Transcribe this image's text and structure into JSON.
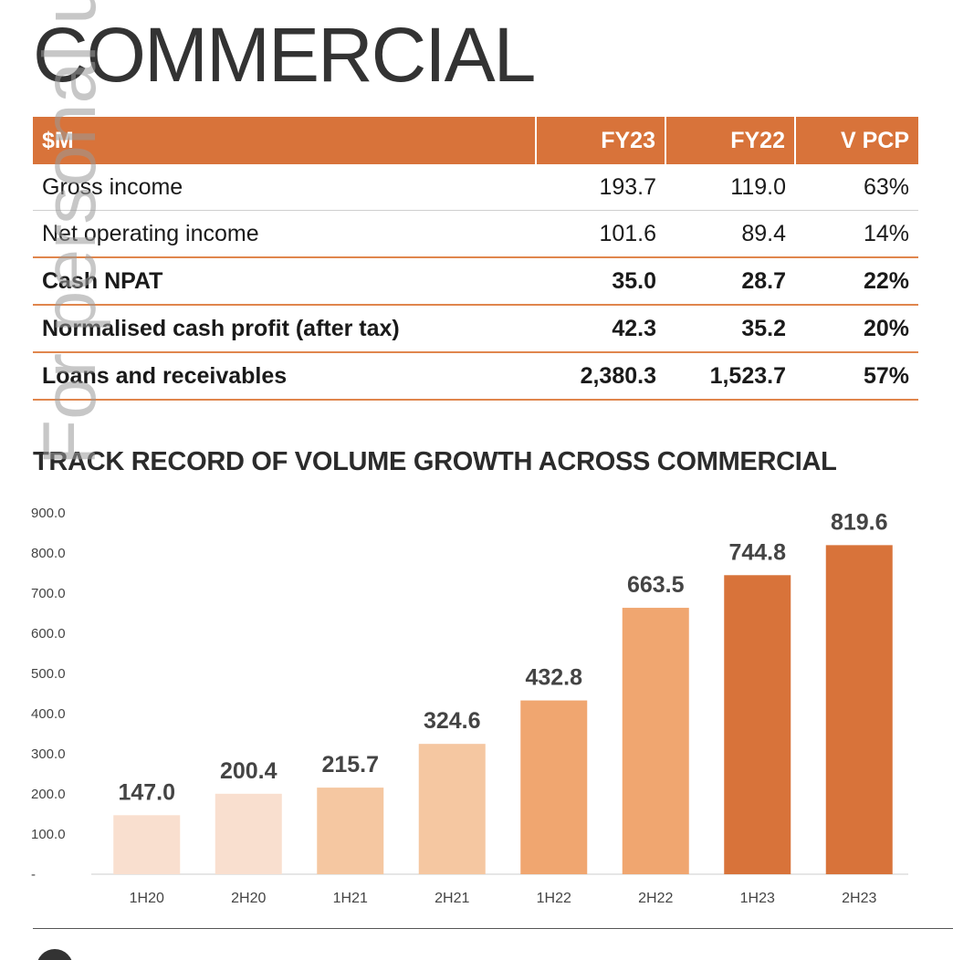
{
  "page": {
    "title": "COMMERCIAL",
    "watermark": "For personal use only"
  },
  "table": {
    "headers": [
      "$M",
      "FY23",
      "FY22",
      "V PCP"
    ],
    "rows": [
      {
        "label": "Gross income",
        "fy23": "193.7",
        "fy22": "119.0",
        "vpcp": "63%",
        "bold": false
      },
      {
        "label": "Net operating income",
        "fy23": "101.6",
        "fy22": "89.4",
        "vpcp": "14%",
        "bold": false
      },
      {
        "label": "Cash NPAT",
        "fy23": "35.0",
        "fy22": "28.7",
        "vpcp": "22%",
        "bold": true
      },
      {
        "label": "Normalised cash profit (after tax)",
        "fy23": "42.3",
        "fy22": "35.2",
        "vpcp": "20%",
        "bold": true
      },
      {
        "label": "Loans and receivables",
        "fy23": "2,380.3",
        "fy22": "1,523.7",
        "vpcp": "57%",
        "bold": true
      }
    ]
  },
  "chart_data": {
    "type": "bar",
    "title": "TRACK RECORD OF VOLUME GROWTH ACROSS COMMERCIAL",
    "categories": [
      "1H20",
      "2H20",
      "1H21",
      "2H21",
      "1H22",
      "2H22",
      "1H23",
      "2H23"
    ],
    "values": [
      147.0,
      200.4,
      215.7,
      324.6,
      432.8,
      663.5,
      744.8,
      819.6
    ],
    "value_labels": [
      "147.0",
      "200.4",
      "215.7",
      "324.6",
      "432.8",
      "663.5",
      "744.8",
      "819.6"
    ],
    "bar_colors": [
      "#f9dfcf",
      "#f9dfcf",
      "#f5c7a1",
      "#f5c7a1",
      "#f0a670",
      "#f0a670",
      "#d8733a",
      "#d8733a"
    ],
    "yticks": [
      "-",
      "100.0",
      "200.0",
      "300.0",
      "400.0",
      "500.0",
      "600.0",
      "700.0",
      "800.0",
      "900.0"
    ],
    "ylim": [
      0,
      900
    ],
    "xlabel": "",
    "ylabel": ""
  }
}
